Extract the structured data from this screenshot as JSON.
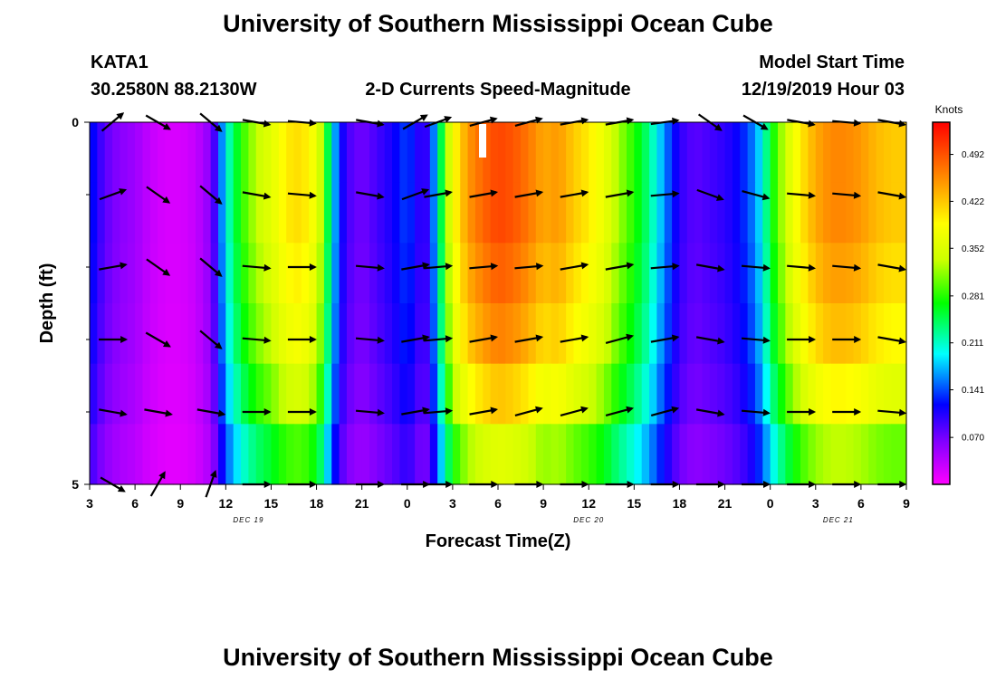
{
  "page": {
    "title_top": "University of Southern Mississippi Ocean Cube",
    "title_bottom": "University of Southern Mississippi Ocean Cube",
    "station": "KATA1",
    "coords": "30.2580N 88.2130W",
    "plot_title": "2-D Currents Speed-Magnitude",
    "model_label": "Model Start Time",
    "model_time": "12/19/2019 Hour 03"
  },
  "chart_data": {
    "type": "heatmap",
    "title": "2-D Currents Speed-Magnitude",
    "xlabel": "Forecast Time(Z)",
    "ylabel": "Depth (ft)",
    "xlim": [
      0,
      54
    ],
    "ylim": [
      0,
      5
    ],
    "x_ticks": [
      {
        "t": 0,
        "label": "3"
      },
      {
        "t": 3,
        "label": "6"
      },
      {
        "t": 6,
        "label": "9"
      },
      {
        "t": 9,
        "label": "12"
      },
      {
        "t": 12,
        "label": "15"
      },
      {
        "t": 15,
        "label": "18"
      },
      {
        "t": 18,
        "label": "21"
      },
      {
        "t": 21,
        "label": "0"
      },
      {
        "t": 24,
        "label": "3"
      },
      {
        "t": 27,
        "label": "6"
      },
      {
        "t": 30,
        "label": "9"
      },
      {
        "t": 33,
        "label": "12"
      },
      {
        "t": 36,
        "label": "15"
      },
      {
        "t": 39,
        "label": "18"
      },
      {
        "t": 42,
        "label": "21"
      },
      {
        "t": 45,
        "label": "0"
      },
      {
        "t": 48,
        "label": "3"
      },
      {
        "t": 51,
        "label": "6"
      },
      {
        "t": 54,
        "label": "9"
      }
    ],
    "date_labels": [
      {
        "t": 10.5,
        "label": "DEC 19"
      },
      {
        "t": 33.0,
        "label": "DEC 20"
      },
      {
        "t": 49.5,
        "label": "DEC 21"
      }
    ],
    "y_ticks": [
      {
        "d": 0,
        "label": "0"
      },
      {
        "d": 5,
        "label": "5"
      }
    ],
    "colorbar": {
      "unit": "Knots",
      "range": [
        0.0,
        0.54
      ],
      "ticks": [
        "0.492",
        "0.422",
        "0.352",
        "0.281",
        "0.211",
        "0.141",
        "0.070"
      ]
    },
    "speed_profile": [
      {
        "t": 0,
        "v": 0.13
      },
      {
        "t": 1,
        "v": 0.08
      },
      {
        "t": 2,
        "v": 0.06
      },
      {
        "t": 3,
        "v": 0.05
      },
      {
        "t": 4,
        "v": 0.03
      },
      {
        "t": 5,
        "v": 0.02
      },
      {
        "t": 6,
        "v": 0.02
      },
      {
        "t": 7,
        "v": 0.03
      },
      {
        "t": 8,
        "v": 0.06
      },
      {
        "t": 8.5,
        "v": 0.12
      },
      {
        "t": 9,
        "v": 0.2
      },
      {
        "t": 9.5,
        "v": 0.24
      },
      {
        "t": 10,
        "v": 0.28
      },
      {
        "t": 11,
        "v": 0.33
      },
      {
        "t": 12,
        "v": 0.36
      },
      {
        "t": 13,
        "v": 0.4
      },
      {
        "t": 14,
        "v": 0.41
      },
      {
        "t": 15,
        "v": 0.37
      },
      {
        "t": 15.5,
        "v": 0.3
      },
      {
        "t": 16,
        "v": 0.2
      },
      {
        "t": 16.5,
        "v": 0.13
      },
      {
        "t": 17,
        "v": 0.09
      },
      {
        "t": 18,
        "v": 0.07
      },
      {
        "t": 19,
        "v": 0.09
      },
      {
        "t": 20,
        "v": 0.11
      },
      {
        "t": 21,
        "v": 0.14
      },
      {
        "t": 22,
        "v": 0.09
      },
      {
        "t": 22.5,
        "v": 0.11
      },
      {
        "t": 23,
        "v": 0.2
      },
      {
        "t": 23.5,
        "v": 0.3
      },
      {
        "t": 24,
        "v": 0.38
      },
      {
        "t": 25,
        "v": 0.45
      },
      {
        "t": 26,
        "v": 0.48
      },
      {
        "t": 27,
        "v": 0.5
      },
      {
        "t": 28,
        "v": 0.49
      },
      {
        "t": 29,
        "v": 0.47
      },
      {
        "t": 30,
        "v": 0.44
      },
      {
        "t": 31,
        "v": 0.45
      },
      {
        "t": 32,
        "v": 0.42
      },
      {
        "t": 33,
        "v": 0.4
      },
      {
        "t": 34,
        "v": 0.37
      },
      {
        "t": 35,
        "v": 0.32
      },
      {
        "t": 36,
        "v": 0.28
      },
      {
        "t": 37,
        "v": 0.23
      },
      {
        "t": 38,
        "v": 0.16
      },
      {
        "t": 39,
        "v": 0.1
      },
      {
        "t": 40,
        "v": 0.08
      },
      {
        "t": 41,
        "v": 0.09
      },
      {
        "t": 42,
        "v": 0.1
      },
      {
        "t": 43,
        "v": 0.12
      },
      {
        "t": 44,
        "v": 0.16
      },
      {
        "t": 44.5,
        "v": 0.2
      },
      {
        "t": 45,
        "v": 0.26
      },
      {
        "t": 46,
        "v": 0.34
      },
      {
        "t": 47,
        "v": 0.4
      },
      {
        "t": 48,
        "v": 0.44
      },
      {
        "t": 49,
        "v": 0.46
      },
      {
        "t": 50,
        "v": 0.46
      },
      {
        "t": 51,
        "v": 0.45
      },
      {
        "t": 52,
        "v": 0.43
      },
      {
        "t": 53,
        "v": 0.42
      },
      {
        "t": 54,
        "v": 0.42
      }
    ],
    "depth_factor": [
      1.0,
      1.0,
      0.97,
      0.93,
      0.85,
      0.72
    ],
    "arrow_times": [
      1.5,
      4.5,
      8.0,
      11.0,
      14.0,
      18.5,
      21.5,
      23.0,
      26.0,
      29.0,
      32.0,
      35.0,
      38.0,
      41.0,
      44.0,
      47.0,
      50.0,
      53.0
    ],
    "arrow_depths": [
      0,
      1,
      2,
      3,
      4,
      5
    ],
    "arrow_dir_deg": [
      [
        -40,
        30,
        40,
        10,
        5,
        10,
        -30,
        -20,
        -15,
        -15,
        -10,
        -10,
        -8,
        35,
        30,
        10,
        5,
        10
      ],
      [
        -20,
        35,
        40,
        10,
        5,
        10,
        -20,
        -10,
        -10,
        -10,
        -10,
        -10,
        -5,
        20,
        15,
        5,
        5,
        10
      ],
      [
        -10,
        35,
        40,
        5,
        0,
        5,
        -10,
        -5,
        -5,
        -5,
        -10,
        -10,
        -5,
        10,
        5,
        5,
        5,
        10
      ],
      [
        0,
        30,
        40,
        5,
        0,
        5,
        -10,
        -5,
        -10,
        -10,
        -10,
        -15,
        -10,
        10,
        5,
        0,
        0,
        10
      ],
      [
        10,
        10,
        10,
        0,
        0,
        5,
        -10,
        -5,
        -10,
        -15,
        -15,
        -15,
        -15,
        10,
        5,
        0,
        0,
        5
      ],
      [
        30,
        -60,
        -70,
        0,
        0,
        0,
        0,
        0,
        0,
        0,
        0,
        0,
        0,
        0,
        0,
        0,
        0,
        0
      ]
    ]
  }
}
